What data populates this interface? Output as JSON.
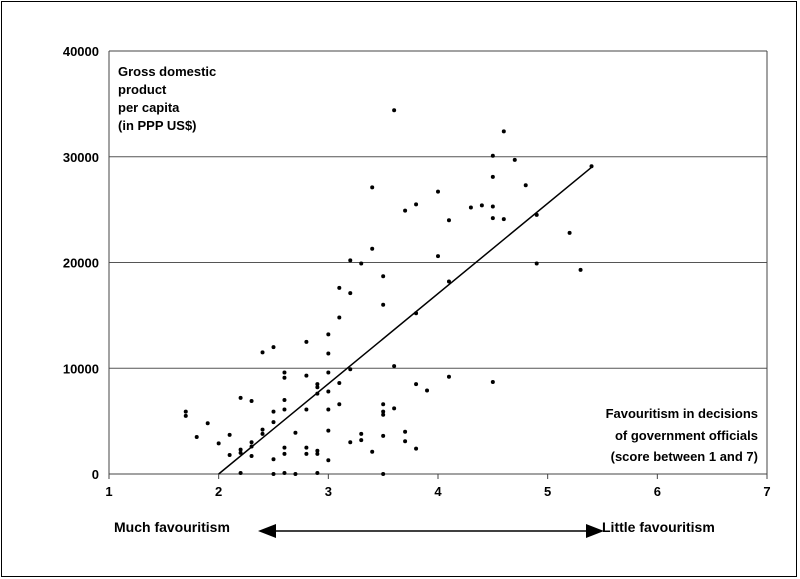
{
  "chart_data": {
    "type": "scatter",
    "title": "",
    "ylabel_lines": [
      "Gross domestic",
      "product",
      "per capita",
      "(in PPP US$)"
    ],
    "xlabel_lines": [
      "Favouritism in decisions",
      "of government officials",
      "(score between 1 and 7)"
    ],
    "xlim": [
      1,
      7
    ],
    "ylim": [
      0,
      40000
    ],
    "x_ticks": [
      "1",
      "2",
      "3",
      "4",
      "5",
      "6",
      "7"
    ],
    "y_ticks": [
      "0",
      "10000",
      "20000",
      "30000",
      "40000"
    ],
    "grid": "horizontal",
    "trendline": {
      "x": [
        2.0,
        5.4
      ],
      "y": [
        0,
        29000
      ]
    },
    "bottom_arrow": {
      "left_label": "Much favouritism",
      "right_label": "Little favouritism"
    },
    "points": [
      [
        1.7,
        5500
      ],
      [
        1.7,
        5900
      ],
      [
        1.8,
        3500
      ],
      [
        1.9,
        4800
      ],
      [
        2.0,
        2900
      ],
      [
        2.1,
        3700
      ],
      [
        2.1,
        1800
      ],
      [
        2.2,
        2300
      ],
      [
        2.2,
        7200
      ],
      [
        2.2,
        2000
      ],
      [
        2.2,
        100
      ],
      [
        2.3,
        3000
      ],
      [
        2.3,
        2600
      ],
      [
        2.3,
        6900
      ],
      [
        2.3,
        1700
      ],
      [
        2.4,
        4200
      ],
      [
        2.4,
        3800
      ],
      [
        2.4,
        11500
      ],
      [
        2.5,
        12000
      ],
      [
        2.5,
        5900
      ],
      [
        2.5,
        4900
      ],
      [
        2.5,
        1400
      ],
      [
        2.5,
        0
      ],
      [
        2.6,
        9100
      ],
      [
        2.6,
        9600
      ],
      [
        2.6,
        7000
      ],
      [
        2.6,
        6100
      ],
      [
        2.6,
        2500
      ],
      [
        2.6,
        1900
      ],
      [
        2.6,
        100
      ],
      [
        2.7,
        3900
      ],
      [
        2.7,
        0
      ],
      [
        2.8,
        12500
      ],
      [
        2.8,
        9300
      ],
      [
        2.8,
        6100
      ],
      [
        2.8,
        2500
      ],
      [
        2.8,
        1900
      ],
      [
        2.9,
        8500
      ],
      [
        2.9,
        8200
      ],
      [
        2.9,
        7600
      ],
      [
        2.9,
        2200
      ],
      [
        2.9,
        1900
      ],
      [
        2.9,
        100
      ],
      [
        3.0,
        13200
      ],
      [
        3.0,
        11400
      ],
      [
        3.0,
        9600
      ],
      [
        3.0,
        7800
      ],
      [
        3.0,
        6100
      ],
      [
        3.0,
        4100
      ],
      [
        3.0,
        1300
      ],
      [
        3.1,
        17600
      ],
      [
        3.1,
        14800
      ],
      [
        3.1,
        8600
      ],
      [
        3.1,
        6600
      ],
      [
        3.2,
        20200
      ],
      [
        3.2,
        17100
      ],
      [
        3.2,
        9900
      ],
      [
        3.2,
        3000
      ],
      [
        3.3,
        19900
      ],
      [
        3.3,
        3800
      ],
      [
        3.3,
        3200
      ],
      [
        3.4,
        27100
      ],
      [
        3.4,
        21300
      ],
      [
        3.4,
        2100
      ],
      [
        3.5,
        18700
      ],
      [
        3.5,
        16000
      ],
      [
        3.5,
        6600
      ],
      [
        3.5,
        5900
      ],
      [
        3.5,
        5600
      ],
      [
        3.5,
        3600
      ],
      [
        3.5,
        0
      ],
      [
        3.6,
        34400
      ],
      [
        3.6,
        10200
      ],
      [
        3.6,
        6200
      ],
      [
        3.7,
        24900
      ],
      [
        3.7,
        4000
      ],
      [
        3.7,
        3100
      ],
      [
        3.8,
        25500
      ],
      [
        3.8,
        15200
      ],
      [
        3.8,
        8500
      ],
      [
        3.8,
        2400
      ],
      [
        3.9,
        7900
      ],
      [
        4.0,
        26700
      ],
      [
        4.0,
        20600
      ],
      [
        4.1,
        24000
      ],
      [
        4.1,
        18200
      ],
      [
        4.1,
        9200
      ],
      [
        4.3,
        25200
      ],
      [
        4.4,
        25400
      ],
      [
        4.5,
        30100
      ],
      [
        4.5,
        28100
      ],
      [
        4.5,
        25300
      ],
      [
        4.5,
        24200
      ],
      [
        4.5,
        8700
      ],
      [
        4.6,
        32400
      ],
      [
        4.6,
        24100
      ],
      [
        4.7,
        29700
      ],
      [
        4.8,
        27300
      ],
      [
        4.9,
        24500
      ],
      [
        4.9,
        19900
      ],
      [
        5.2,
        22800
      ],
      [
        5.3,
        19300
      ],
      [
        5.4,
        29100
      ]
    ]
  }
}
